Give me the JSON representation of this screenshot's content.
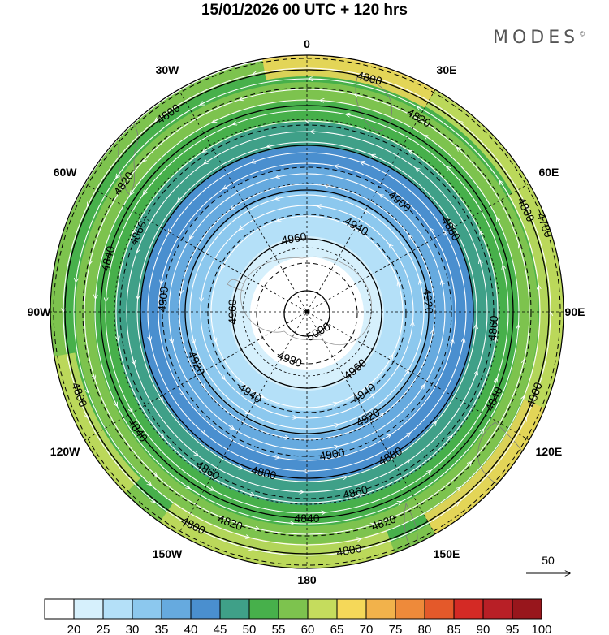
{
  "title": "15/01/2026  00 UTC  + 120 hrs",
  "brand": "MODES",
  "brand_mark": "©",
  "lon_labels": [
    "0",
    "30E",
    "60E",
    "90E",
    "120E",
    "150E",
    "180",
    "150W",
    "120W",
    "90W",
    "60W",
    "30W"
  ],
  "colorbar": {
    "ticks": [
      "20",
      "25",
      "30",
      "35",
      "40",
      "45",
      "50",
      "55",
      "60",
      "65",
      "70",
      "75",
      "80",
      "85",
      "90",
      "95",
      "100"
    ],
    "colors": [
      "#ffffff",
      "#d6f0fc",
      "#b4e0f8",
      "#8cc8ee",
      "#66aadf",
      "#4a8fcf",
      "#3fa088",
      "#47b04b",
      "#7dc34e",
      "#c5dc5d",
      "#f5d859",
      "#f2b24b",
      "#ee8a3a",
      "#e4592a",
      "#d42a25",
      "#b81f26",
      "#98161c"
    ]
  },
  "contours": [
    {
      "value": "5000",
      "label_deg": [
        150
      ]
    },
    {
      "value": "4980",
      "label_deg": [
        200
      ]
    },
    {
      "value": "4960",
      "label_deg": [
        -10,
        140,
        270
      ]
    },
    {
      "value": "4940",
      "label_deg": [
        30,
        145,
        215
      ]
    },
    {
      "value": "4920",
      "label_deg": [
        85,
        150,
        245
      ]
    },
    {
      "value": "4900",
      "label_deg": [
        40,
        170,
        275
      ]
    },
    {
      "value": "4880",
      "label_deg": [
        60,
        150,
        195
      ]
    },
    {
      "value": "4860",
      "label_deg": [
        95,
        165,
        212,
        295
      ]
    },
    {
      "value": "4840",
      "label_deg": [
        115,
        180,
        235,
        285
      ]
    },
    {
      "value": "4820",
      "label_deg": [
        30,
        160,
        200,
        305
      ]
    },
    {
      "value": "4800",
      "label_deg": [
        15,
        65,
        110,
        170,
        208,
        250,
        325
      ]
    },
    {
      "value": "4780",
      "label_deg": [
        70
      ]
    }
  ],
  "vector_scale": {
    "label": "50"
  }
}
